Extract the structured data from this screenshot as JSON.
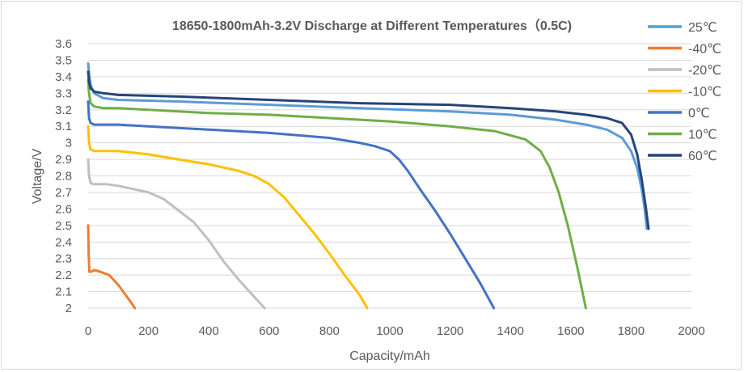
{
  "chart_data": {
    "type": "line",
    "title": "18650-1800mAh-3.2V Discharge at Different Temperatures（0.5C)",
    "xlabel": "Capacity/mAh",
    "ylabel": "Voltage/V",
    "xlim": [
      0,
      2000
    ],
    "ylim": [
      2,
      3.6
    ],
    "xticks": [
      "0",
      "200",
      "400",
      "600",
      "800",
      "1000",
      "1200",
      "1400",
      "1600",
      "1800",
      "2000"
    ],
    "yticks": [
      "2",
      "2.1",
      "2.2",
      "2.3",
      "2.4",
      "2.5",
      "2.6",
      "2.7",
      "2.8",
      "2.9",
      "3",
      "3.1",
      "3.2",
      "3.3",
      "3.4",
      "3.5",
      "3.6"
    ],
    "grid": "horizontal",
    "legend_position": "right",
    "series": [
      {
        "name": "25℃",
        "color": "#5b9bd5",
        "x": [
          0,
          3,
          8,
          20,
          50,
          100,
          300,
          600,
          900,
          1200,
          1400,
          1550,
          1650,
          1720,
          1770,
          1800,
          1820,
          1835,
          1845,
          1852
        ],
        "y": [
          3.48,
          3.42,
          3.35,
          3.3,
          3.27,
          3.26,
          3.25,
          3.23,
          3.21,
          3.19,
          3.17,
          3.14,
          3.11,
          3.08,
          3.03,
          2.95,
          2.85,
          2.72,
          2.6,
          2.48
        ]
      },
      {
        "name": "-40℃",
        "color": "#ed7d31",
        "x": [
          0,
          2,
          4,
          10,
          20,
          40,
          70,
          100,
          120,
          140,
          155
        ],
        "y": [
          2.5,
          2.32,
          2.22,
          2.22,
          2.23,
          2.22,
          2.2,
          2.14,
          2.09,
          2.04,
          2.0
        ]
      },
      {
        "name": "-20℃",
        "color": "#bfbfbf",
        "x": [
          0,
          3,
          8,
          15,
          30,
          60,
          100,
          150,
          200,
          250,
          300,
          350,
          400,
          450,
          500,
          550,
          585
        ],
        "y": [
          2.9,
          2.8,
          2.76,
          2.75,
          2.75,
          2.75,
          2.74,
          2.72,
          2.7,
          2.66,
          2.59,
          2.52,
          2.41,
          2.28,
          2.17,
          2.07,
          2.0
        ]
      },
      {
        "name": "-10℃",
        "color": "#ffc000",
        "x": [
          0,
          3,
          8,
          20,
          50,
          100,
          200,
          300,
          400,
          500,
          550,
          600,
          650,
          700,
          750,
          800,
          850,
          900,
          925
        ],
        "y": [
          3.1,
          3.0,
          2.96,
          2.95,
          2.95,
          2.95,
          2.93,
          2.9,
          2.87,
          2.83,
          2.8,
          2.75,
          2.67,
          2.56,
          2.45,
          2.33,
          2.2,
          2.08,
          2.0
        ]
      },
      {
        "name": "0℃",
        "color": "#4472c4",
        "x": [
          0,
          3,
          8,
          20,
          50,
          100,
          200,
          400,
          600,
          800,
          900,
          950,
          1000,
          1030,
          1060,
          1100,
          1150,
          1200,
          1250,
          1300,
          1345
        ],
        "y": [
          3.25,
          3.15,
          3.12,
          3.11,
          3.11,
          3.11,
          3.1,
          3.08,
          3.06,
          3.03,
          3.0,
          2.98,
          2.95,
          2.9,
          2.83,
          2.72,
          2.59,
          2.45,
          2.3,
          2.15,
          2.0
        ]
      },
      {
        "name": "10℃",
        "color": "#70ad47",
        "x": [
          0,
          3,
          8,
          20,
          50,
          100,
          200,
          400,
          600,
          800,
          1000,
          1200,
          1350,
          1450,
          1500,
          1530,
          1560,
          1590,
          1620,
          1650
        ],
        "y": [
          3.38,
          3.3,
          3.24,
          3.22,
          3.21,
          3.21,
          3.2,
          3.18,
          3.17,
          3.15,
          3.13,
          3.1,
          3.07,
          3.02,
          2.95,
          2.85,
          2.7,
          2.5,
          2.26,
          2.0
        ]
      },
      {
        "name": "60℃",
        "color": "#264478",
        "x": [
          0,
          3,
          8,
          20,
          50,
          100,
          300,
          600,
          900,
          1200,
          1400,
          1550,
          1650,
          1720,
          1770,
          1800,
          1820,
          1835,
          1848,
          1858
        ],
        "y": [
          3.43,
          3.37,
          3.33,
          3.31,
          3.3,
          3.29,
          3.28,
          3.26,
          3.24,
          3.23,
          3.21,
          3.19,
          3.17,
          3.15,
          3.12,
          3.05,
          2.93,
          2.78,
          2.62,
          2.48
        ]
      }
    ]
  }
}
